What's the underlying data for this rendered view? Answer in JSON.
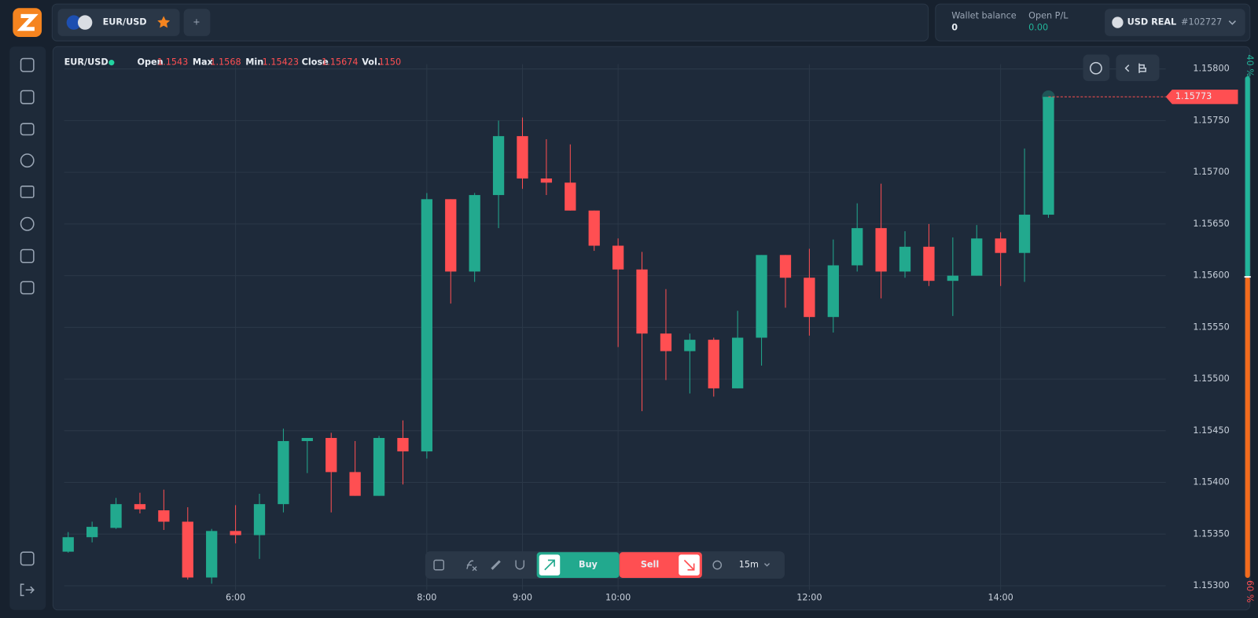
{
  "header": {
    "tab": "EUR/USD",
    "add": "+",
    "wallet_label": "Wallet balance",
    "wallet_value": 0,
    "pl_label": "Open P/L",
    "pl_value": "0.00",
    "account": "USD REAL",
    "account_id": "#102727"
  },
  "legend": {
    "symbol": "EUR/USD",
    "open_label": "Open",
    "max_label": "Max",
    "min_label": "Min",
    "close_label": "Close",
    "vol_label": "Vol.",
    "volume": 1150
  },
  "toolbar": {
    "buy": "Buy",
    "sell": "Sell",
    "timeframe": "15m"
  },
  "sentiment": {
    "values": [
      40,
      60
    ],
    "value_labels": [
      "40 %",
      "60 %"
    ],
    "colors": [
      "#22b59a",
      "#f26b1d"
    ]
  },
  "chart_data": {
    "type": "candlestick",
    "up_color": "#22a98e",
    "down_color": "#ff4f52",
    "categories": [
      null,
      null,
      null,
      null,
      null,
      null,
      null,
      "6:00",
      null,
      null,
      null,
      null,
      null,
      null,
      null,
      "8:00",
      null,
      null,
      null,
      "9:00",
      null,
      null,
      null,
      "10:00",
      null,
      null,
      null,
      null,
      null,
      null,
      null,
      "12:00",
      null,
      null,
      null,
      null,
      null,
      null,
      null,
      "14:00",
      null,
      null
    ],
    "open": [
      1.15333,
      1.15347,
      1.15356,
      1.15379,
      1.15373,
      1.15362,
      1.15308,
      1.15353,
      1.15349,
      1.15379,
      1.1544,
      1.15443,
      1.1541,
      1.15387,
      1.15443,
      1.1543,
      1.15674,
      1.15604,
      1.15678,
      1.15735,
      1.15694,
      1.1569,
      1.15663,
      1.15629,
      1.15606,
      1.15544,
      1.15527,
      1.15538,
      1.15491,
      1.1554,
      1.1562,
      1.15598,
      1.1556,
      1.1561,
      1.15646,
      1.15604,
      1.15628,
      1.15595,
      1.156,
      1.15636,
      1.15622,
      1.15659
    ],
    "high": [
      1.15352,
      1.15362,
      1.15385,
      1.1539,
      1.15393,
      1.15376,
      1.15355,
      1.15378,
      1.15389,
      1.15452,
      1.15443,
      1.15448,
      1.1544,
      1.15445,
      1.1546,
      1.1568,
      1.15674,
      1.1568,
      1.1575,
      1.15753,
      1.15732,
      1.15727,
      1.15663,
      1.15636,
      1.15623,
      1.15587,
      1.15544,
      1.1554,
      1.15566,
      1.1562,
      1.1562,
      1.15626,
      1.15635,
      1.1567,
      1.15689,
      1.15643,
      1.1565,
      1.15637,
      1.15649,
      1.15642,
      1.15723,
      1.15773
    ],
    "low": [
      1.15332,
      1.15342,
      1.15355,
      1.1537,
      1.15354,
      1.15306,
      1.15302,
      1.15341,
      1.15326,
      1.15371,
      1.15409,
      1.15371,
      1.15387,
      1.15387,
      1.15398,
      1.15423,
      1.15573,
      1.15594,
      1.15646,
      1.15684,
      1.15678,
      1.15663,
      1.15624,
      1.15531,
      1.15469,
      1.15499,
      1.15486,
      1.15483,
      1.15491,
      1.15513,
      1.15569,
      1.15542,
      1.15545,
      1.15604,
      1.15578,
      1.15598,
      1.1559,
      1.15561,
      1.156,
      1.1559,
      1.15594,
      1.15656
    ],
    "close": [
      1.15347,
      1.15357,
      1.15379,
      1.15374,
      1.15362,
      1.15308,
      1.15353,
      1.15349,
      1.15379,
      1.1544,
      1.15443,
      1.1541,
      1.15387,
      1.15443,
      1.1543,
      1.15674,
      1.15604,
      1.15678,
      1.15735,
      1.15694,
      1.1569,
      1.15663,
      1.15629,
      1.15606,
      1.15544,
      1.15527,
      1.15538,
      1.15491,
      1.1554,
      1.1562,
      1.15598,
      1.1556,
      1.1561,
      1.15646,
      1.15604,
      1.15628,
      1.15595,
      1.156,
      1.15636,
      1.15622,
      1.15659,
      1.15773
    ],
    "last_price": 1.15773,
    "ylim": [
      1.15296,
      1.15817
    ],
    "yticks": [
      {
        "value": 1.153,
        "label": "1.15300"
      },
      {
        "value": 1.1535,
        "label": "1.15350"
      },
      {
        "value": 1.154,
        "label": "1.15400"
      },
      {
        "value": 1.1545,
        "label": "1.15450"
      },
      {
        "value": 1.155,
        "label": "1.15500"
      },
      {
        "value": 1.1555,
        "label": "1.15550"
      },
      {
        "value": 1.156,
        "label": "1.15600"
      },
      {
        "value": 1.1565,
        "label": "1.15650"
      },
      {
        "value": 1.157,
        "label": "1.15700"
      },
      {
        "value": 1.1575,
        "label": "1.15750"
      },
      {
        "value": 1.158,
        "label": "1.15800"
      }
    ],
    "grid": true
  }
}
